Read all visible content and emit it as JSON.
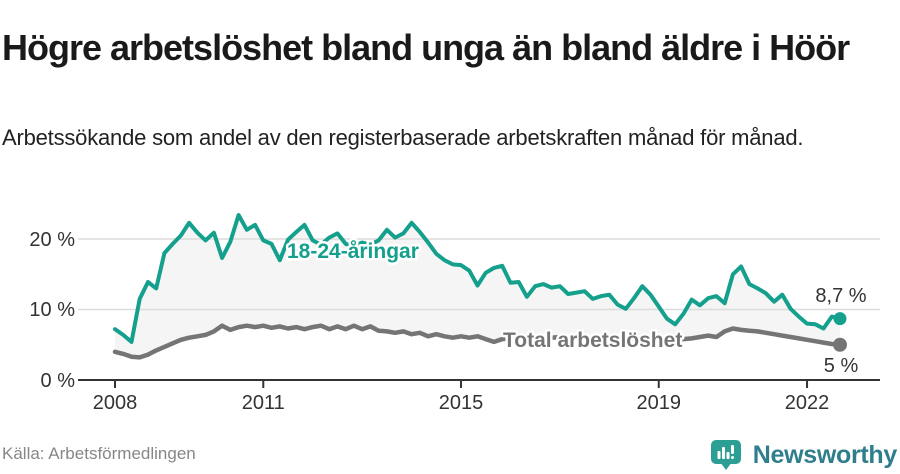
{
  "header": {
    "title": "Högre arbetslöshet bland unga än bland äldre i Höör",
    "subtitle": "Arbetssökande som andel av den registerbaserade arbetskraften månad för månad."
  },
  "colors": {
    "youth_teal": "#14a08d",
    "total_gray": "#757575",
    "area_fill": "#f5f5f5",
    "gridline": "#dcdcdc",
    "axis": "#333333"
  },
  "chart_data": {
    "type": "line",
    "title": "Högre arbetslöshet bland unga än bland äldre i Höör",
    "subtitle": "Arbetssökande som andel av den registerbaserade arbetskraften månad för månad.",
    "x_unit": "months",
    "x_start_year": 2008,
    "x_interval_months": 2,
    "x_tick_years": [
      2008,
      2011,
      2015,
      2019,
      2022
    ],
    "x_tick_labels": [
      "2008",
      "2011",
      "2015",
      "2019",
      "2022"
    ],
    "y_tick_values": [
      20,
      10,
      0
    ],
    "y_tick_labels": [
      "20 %",
      "10 %",
      "0 %"
    ],
    "ylim": [
      0,
      26
    ],
    "grid": true,
    "legend_position": "inline-labels",
    "series": [
      {
        "name": "18-24-åringar",
        "color": "#14a08d",
        "end_label": "8,7 %",
        "end_value": 8.7,
        "values": [
          7.2,
          6.4,
          5.4,
          11.5,
          13.9,
          13.0,
          18.0,
          19.3,
          20.5,
          22.3,
          20.9,
          19.8,
          20.9,
          17.3,
          19.6,
          23.4,
          21.3,
          22.0,
          19.8,
          19.3,
          17.0,
          19.9,
          21.0,
          22.0,
          19.8,
          19.2,
          20.2,
          20.8,
          19.3,
          19.0,
          19.5,
          19.2,
          19.8,
          21.3,
          20.2,
          20.8,
          22.3,
          21.0,
          19.5,
          17.9,
          17.0,
          16.4,
          16.3,
          15.5,
          13.4,
          15.2,
          15.9,
          16.2,
          13.8,
          13.9,
          11.8,
          13.3,
          13.6,
          13.1,
          13.3,
          12.2,
          12.4,
          12.6,
          11.5,
          11.9,
          12.1,
          10.7,
          10.1,
          11.6,
          13.3,
          12.1,
          10.4,
          8.7,
          7.9,
          9.4,
          11.4,
          10.6,
          11.6,
          11.9,
          10.9,
          15.0,
          16.1,
          13.6,
          13.0,
          12.3,
          11.1,
          12.1,
          10.1,
          9.0,
          8.0,
          7.9,
          7.3,
          9.0,
          8.7
        ]
      },
      {
        "name": "Total arbetslöshet",
        "color": "#757575",
        "end_label": "5 %",
        "end_value": 5.0,
        "values": [
          4.0,
          3.7,
          3.3,
          3.2,
          3.6,
          4.2,
          4.7,
          5.2,
          5.7,
          6.0,
          6.2,
          6.4,
          6.9,
          7.7,
          7.1,
          7.5,
          7.7,
          7.5,
          7.7,
          7.4,
          7.6,
          7.3,
          7.5,
          7.2,
          7.5,
          7.7,
          7.2,
          7.6,
          7.2,
          7.7,
          7.2,
          7.6,
          7.0,
          6.9,
          6.7,
          6.9,
          6.5,
          6.7,
          6.2,
          6.5,
          6.2,
          6.0,
          6.2,
          6.0,
          6.2,
          5.8,
          5.4,
          5.8,
          5.9,
          6.0,
          5.9,
          6.1,
          5.9,
          6.0,
          6.1,
          5.9,
          6.0,
          5.8,
          5.9,
          5.7,
          5.8,
          5.6,
          5.7,
          5.5,
          5.6,
          5.8,
          5.9,
          5.7,
          5.6,
          5.8,
          5.9,
          6.1,
          6.3,
          6.1,
          6.9,
          7.3,
          7.1,
          7.0,
          6.9,
          6.7,
          6.5,
          6.3,
          6.1,
          5.9,
          5.7,
          5.5,
          5.3,
          5.1,
          5.0
        ]
      }
    ]
  },
  "footer": {
    "source": "Källa: Arbetsförmedlingen",
    "brand": "Newsworthy"
  }
}
